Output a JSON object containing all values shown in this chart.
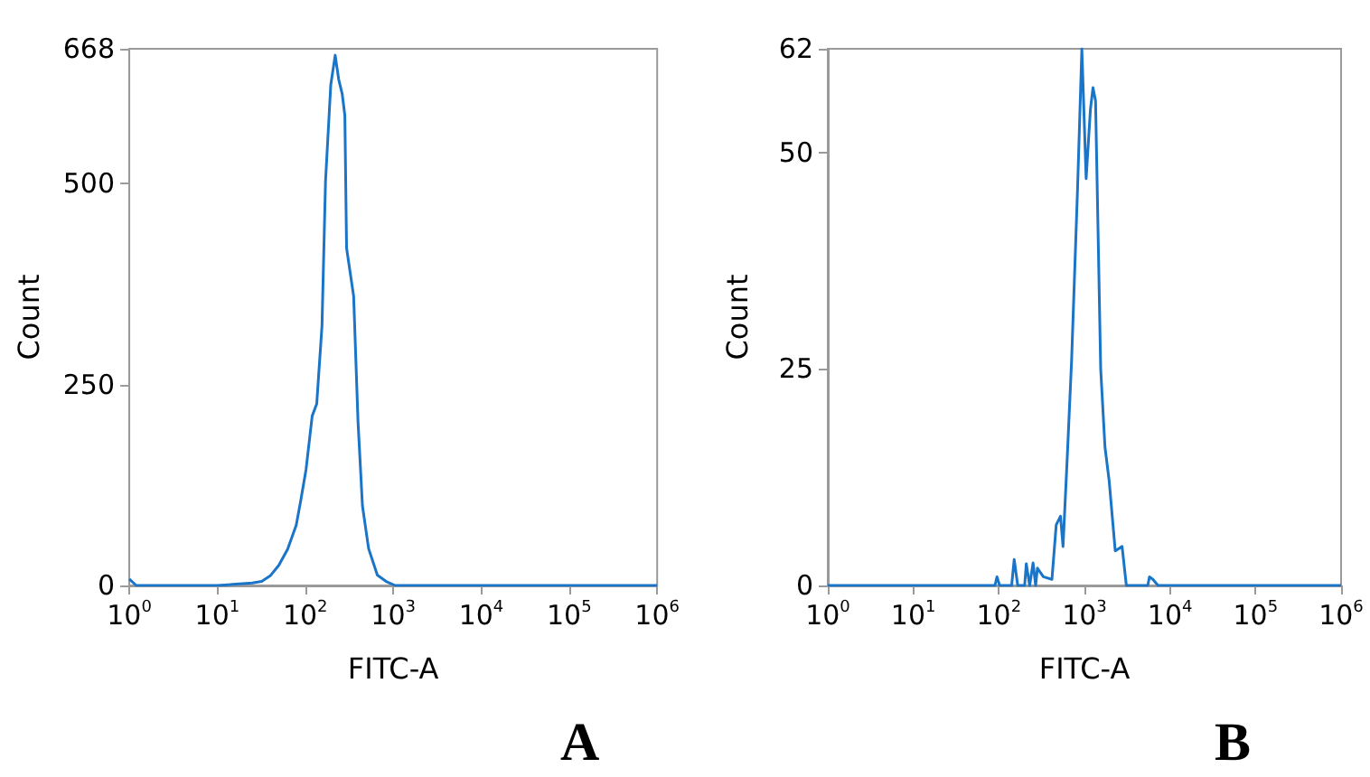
{
  "chart_data": [
    {
      "type": "line",
      "xlabel": "FITC-A",
      "ylabel": "Count",
      "log": "x",
      "grid": false,
      "annotations": [
        "A"
      ],
      "xlim": [
        1,
        1000000
      ],
      "xticks": [
        {
          "value": 1,
          "label": "10$^{0}$"
        },
        {
          "value": 10,
          "label": "10$^{1}$"
        },
        {
          "value": 100,
          "label": "10$^{2}$"
        },
        {
          "value": 1000,
          "label": "10$^{3}$"
        },
        {
          "value": 10000,
          "label": "10$^{4}$"
        },
        {
          "value": 100000,
          "label": "10$^{5}$"
        },
        {
          "value": 1000000,
          "label": "10$^{6}$"
        }
      ],
      "ylim": [
        0,
        668
      ],
      "yticks": [
        0,
        250,
        500,
        668
      ],
      "x": [
        1,
        1.2,
        10,
        25,
        32,
        40,
        50,
        63,
        79,
        89,
        102,
        120,
        135,
        155,
        170,
        195,
        219,
        240,
        263,
        282,
        295,
        355,
        398,
        447,
        525,
        660,
        830,
        1050,
        1000000
      ],
      "series": [
        {
          "color": "#1a75c8",
          "values": [
            8,
            0,
            0,
            3,
            5,
            12,
            25,
            45,
            75,
            106,
            144,
            211,
            226,
            323,
            503,
            623,
            660,
            630,
            612,
            585,
            420,
            360,
            204,
            99,
            46,
            13,
            5,
            0,
            0
          ]
        }
      ]
    },
    {
      "type": "line",
      "xlabel": "FITC-A",
      "ylabel": "Count",
      "log": "x",
      "grid": false,
      "annotations": [
        "B"
      ],
      "xlim": [
        1,
        1000000
      ],
      "xticks": [
        {
          "value": 1,
          "label": "10$^{0}$"
        },
        {
          "value": 10,
          "label": "10$^{1}$"
        },
        {
          "value": 100,
          "label": "10$^{2}$"
        },
        {
          "value": 1000,
          "label": "10$^{3}$"
        },
        {
          "value": 10000,
          "label": "10$^{4}$"
        },
        {
          "value": 100000,
          "label": "10$^{5}$"
        },
        {
          "value": 1000000,
          "label": "10$^{6}$"
        }
      ],
      "ylim": [
        0,
        62
      ],
      "yticks": [
        0,
        25,
        50,
        62
      ],
      "x": [
        1,
        90,
        95,
        102,
        141,
        151,
        166,
        200,
        209,
        229,
        251,
        269,
        282,
        331,
        417,
        468,
        525,
        562,
        631,
        708,
        832,
        933,
        1047,
        1175,
        1259,
        1349,
        1549,
        1738,
        1950,
        2291,
        2754,
        3090,
        5500,
        5754,
        6310,
        7244,
        1000000
      ],
      "series": [
        {
          "color": "#1a75c8",
          "values": [
            0,
            0,
            1,
            0,
            0,
            3,
            0,
            0,
            2.5,
            0,
            2.6,
            0,
            2,
            1,
            0.7,
            7,
            8,
            4.5,
            15,
            26,
            46,
            62,
            47,
            55,
            57.5,
            56,
            25,
            16,
            12,
            4,
            4.5,
            0,
            0,
            1,
            0.7,
            0,
            0
          ]
        }
      ]
    }
  ]
}
